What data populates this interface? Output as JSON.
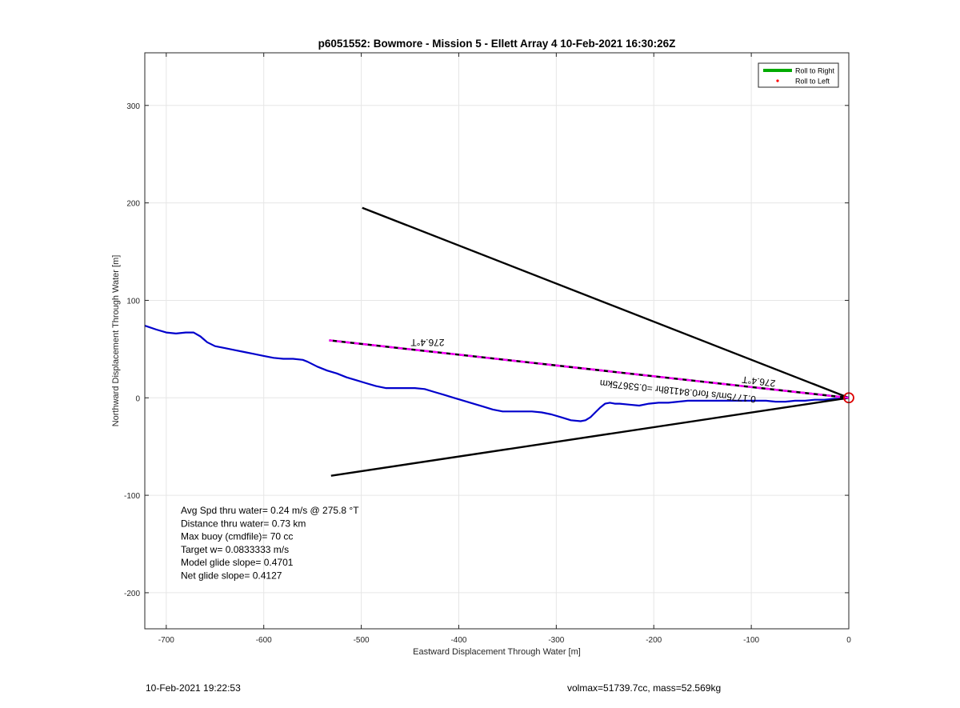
{
  "chart_data": {
    "type": "line",
    "title": "p6051552: Bowmore - Mission 5 - Ellett Array 4 10-Feb-2021 16:30:26Z",
    "xlabel": "Eastward Displacement Through Water [m]",
    "ylabel": "Northward Displacement Through Water [m]",
    "xlim": [
      -722,
      0
    ],
    "ylim": [
      -237,
      354
    ],
    "xticks": [
      -700,
      -600,
      -500,
      -400,
      -300,
      -200,
      -100,
      0
    ],
    "yticks": [
      -200,
      -100,
      0,
      100,
      200,
      300
    ],
    "grid": true,
    "legend_position": "top-right",
    "legend": [
      {
        "label": "Roll to Right",
        "color": "#00aa00",
        "style": "line"
      },
      {
        "label": "Roll to Left",
        "color": "#ff0000",
        "style": "dot"
      }
    ],
    "series": [
      {
        "color": "#0000cc",
        "x": [
          -722,
          -710,
          -700,
          -690,
          -680,
          -672,
          -665,
          -658,
          -650,
          -640,
          -630,
          -620,
          -610,
          -600,
          -590,
          -580,
          -570,
          -560,
          -555,
          -545,
          -535,
          -525,
          -515,
          -505,
          -495,
          -485,
          -475,
          -465,
          -455,
          -445,
          -435,
          -425,
          -415,
          -405,
          -395,
          -385,
          -375,
          -365,
          -355,
          -345,
          -335,
          -325,
          -315,
          -305,
          -295,
          -285,
          -275,
          -270,
          -265,
          -260,
          -255,
          -250,
          -245,
          -240,
          -235,
          -225,
          -215,
          -205,
          -195,
          -185,
          -175,
          -165,
          -155,
          -145,
          -135,
          -125,
          -115,
          -105,
          -95,
          -85,
          -75,
          -65,
          -55,
          -45,
          -35,
          -25,
          -15,
          -5,
          0
        ],
        "y": [
          74,
          70,
          67,
          66,
          67,
          67,
          63,
          57,
          53,
          51,
          49,
          47,
          45,
          43,
          41,
          40,
          40,
          39,
          37,
          32,
          28,
          25,
          21,
          18,
          15,
          12,
          10,
          10,
          10,
          10,
          9,
          6,
          3,
          0,
          -3,
          -6,
          -9,
          -12,
          -14,
          -14,
          -14,
          -14,
          -15,
          -17,
          -20,
          -23,
          -24,
          -23,
          -20,
          -15,
          -10,
          -6,
          -5,
          -6,
          -6,
          -7,
          -8,
          -6,
          -5,
          -5,
          -4,
          -3,
          -3,
          -3,
          -3,
          -3,
          -3,
          -3,
          -3,
          -3,
          -4,
          -4,
          -3,
          -3,
          -2,
          -2,
          -1,
          -1,
          0
        ]
      },
      {
        "color": "#000000",
        "x": [
          0,
          -499
        ],
        "y": [
          0,
          195
        ]
      },
      {
        "color": "#000000",
        "x": [
          0,
          -531
        ],
        "y": [
          0,
          -80
        ]
      },
      {
        "color": "#ff00ff",
        "style": "dashed-overlay",
        "x": [
          0,
          -533
        ],
        "y": [
          0,
          59
        ]
      }
    ],
    "marker": {
      "x": 0,
      "y": 0,
      "color": "#dd0000",
      "shape": "circle"
    },
    "annotations": [
      {
        "text": "276.4°T",
        "x": -432,
        "y": 60,
        "rotation": 180
      },
      {
        "text": "276.4°T",
        "x": -92,
        "y": 20,
        "rotation": 187
      },
      {
        "text": "0.1775m/s for0.84118hr =0.53675km",
        "x": -175,
        "y": 10,
        "rotation": 186
      },
      {
        "text": "Avg Spd thru water=  0.24 m/s @ 275.8 °T"
      },
      {
        "text": "Distance thru water=  0.73 km"
      },
      {
        "text": "Max buoy (cmdfile)= 70 cc"
      },
      {
        "text": "Target w= 0.0833333 m/s"
      },
      {
        "text": "Model glide slope= 0.4701"
      },
      {
        "text": "Net glide slope= 0.4127"
      }
    ]
  },
  "footer": {
    "left": "10-Feb-2021 19:22:53",
    "right": "volmax=51739.7cc, mass=52.569kg"
  }
}
